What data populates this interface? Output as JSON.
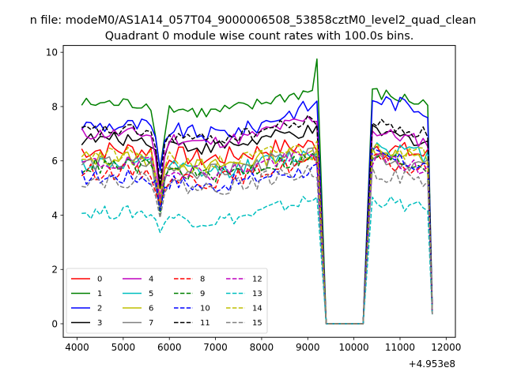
{
  "figure": {
    "suptitle": "n file: modeM0/AS1A14_057T04_9000006508_53858cztM0_level2_quad_clean",
    "offset_text": "+4.953e8"
  },
  "chart_data": {
    "type": "line",
    "title": "Quadrant 0 module wise count rates with 100.0s bins.",
    "xlabel": "",
    "ylabel": "",
    "x_offset": 495300000,
    "xlim": [
      3700,
      12200
    ],
    "ylim": [
      -0.5,
      10.25
    ],
    "xticks": [
      4000,
      5000,
      6000,
      7000,
      8000,
      9000,
      10000,
      11000,
      12000
    ],
    "yticks": [
      0,
      2,
      4,
      6,
      8,
      10
    ],
    "grid": false,
    "legend_position": "lower-left",
    "legend_ncol": 4,
    "segments": [
      {
        "start": 4100,
        "end": 9200,
        "step": 100
      },
      {
        "start": 9400,
        "end": 10200,
        "step": 100
      },
      {
        "start": 10400,
        "end": 11700,
        "step": 100
      }
    ],
    "series": [
      {
        "name": "0",
        "color": "#ff0000",
        "dash": "solid",
        "base": 6.4,
        "dip": 4.4,
        "post": 6.6,
        "ramp": 0.2,
        "end": 0.4,
        "noise": 0.35
      },
      {
        "name": "1",
        "color": "#008000",
        "dash": "solid",
        "base": 8.1,
        "dip": 5.6,
        "post": 8.5,
        "ramp": 0.5,
        "end": 0.5,
        "noise": 0.25,
        "spike": 9.75
      },
      {
        "name": "2",
        "color": "#0000ff",
        "dash": "solid",
        "base": 7.3,
        "dip": 5.4,
        "post": 8.3,
        "ramp": 0.8,
        "end": 0.45,
        "noise": 0.3
      },
      {
        "name": "3",
        "color": "#000000",
        "dash": "solid",
        "base": 6.8,
        "dip": 5.2,
        "post": 7.1,
        "ramp": 0.3,
        "end": 0.4,
        "noise": 0.25
      },
      {
        "name": "4",
        "color": "#bf00bf",
        "dash": "solid",
        "base": 7.0,
        "dip": 4.6,
        "post": 7.1,
        "ramp": 0.6,
        "end": 0.4,
        "noise": 0.25
      },
      {
        "name": "5",
        "color": "#00bfbf",
        "dash": "solid",
        "base": 5.9,
        "dip": 4.2,
        "post": 6.6,
        "ramp": 0.4,
        "end": 0.35,
        "noise": 0.3
      },
      {
        "name": "6",
        "color": "#bfbf00",
        "dash": "solid",
        "base": 6.1,
        "dip": 4.3,
        "post": 6.4,
        "ramp": 0.2,
        "end": 0.35,
        "noise": 0.3
      },
      {
        "name": "7",
        "color": "#808080",
        "dash": "solid",
        "base": 5.9,
        "dip": 4.0,
        "post": 6.2,
        "ramp": 0.3,
        "end": 0.35,
        "noise": 0.3
      },
      {
        "name": "8",
        "color": "#ff0000",
        "dash": "dashed",
        "base": 5.6,
        "dip": 4.1,
        "post": 6.0,
        "ramp": 0.4,
        "end": 0.35,
        "noise": 0.3
      },
      {
        "name": "9",
        "color": "#008000",
        "dash": "dashed",
        "base": 5.8,
        "dip": 4.2,
        "post": 6.2,
        "ramp": 0.3,
        "end": 0.35,
        "noise": 0.3
      },
      {
        "name": "10",
        "color": "#0000ff",
        "dash": "dashed",
        "base": 5.4,
        "dip": 4.3,
        "post": 6.2,
        "ramp": 0.3,
        "end": 0.35,
        "noise": 0.3
      },
      {
        "name": "11",
        "color": "#000000",
        "dash": "dashed",
        "base": 7.1,
        "dip": 5.2,
        "post": 7.4,
        "ramp": 0.4,
        "end": 0.4,
        "noise": 0.25
      },
      {
        "name": "12",
        "color": "#bf00bf",
        "dash": "dashed",
        "base": 5.9,
        "dip": 4.5,
        "post": 6.1,
        "ramp": 0.3,
        "end": 0.35,
        "noise": 0.3
      },
      {
        "name": "13",
        "color": "#00bfbf",
        "dash": "dashed",
        "base": 4.1,
        "dip": 3.2,
        "post": 4.6,
        "ramp": 0.5,
        "end": 0.3,
        "noise": 0.25
      },
      {
        "name": "14",
        "color": "#bfbf00",
        "dash": "dashed",
        "base": 6.2,
        "dip": 4.5,
        "post": 6.6,
        "ramp": 0.3,
        "end": 0.35,
        "noise": 0.3
      },
      {
        "name": "15",
        "color": "#808080",
        "dash": "dashed",
        "base": 5.3,
        "dip": 4.1,
        "post": 5.6,
        "ramp": 0.3,
        "end": 0.35,
        "noise": 0.3
      }
    ]
  }
}
